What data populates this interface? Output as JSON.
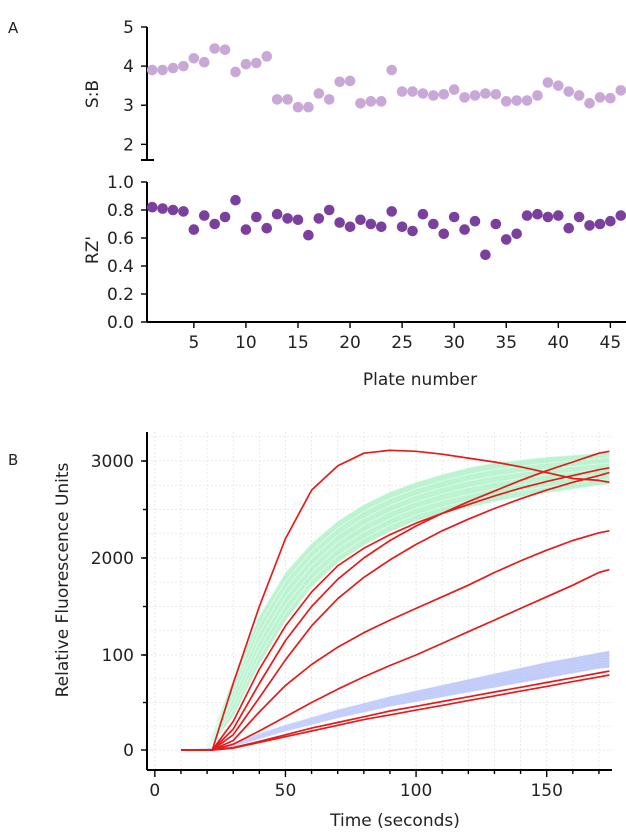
{
  "panels": {
    "a": {
      "letter": "A",
      "top_ylabel": "S:B",
      "bottom_ylabel": "RZ'",
      "xlabel": "Plate number",
      "top_yticks": [
        "2",
        "3",
        "4",
        "5"
      ],
      "bottom_yticks": [
        "0.0",
        "0.2",
        "0.4",
        "0.6",
        "0.8",
        "1.0"
      ],
      "xticks": [
        "5",
        "10",
        "15",
        "20",
        "25",
        "30",
        "35",
        "40",
        "45"
      ]
    },
    "b": {
      "letter": "B",
      "ylabel": "Relative Fluorescence Units",
      "xlabel": "Time (seconds)",
      "yticks": [
        "0",
        "100",
        "2000",
        "3000"
      ],
      "xticks": [
        "0",
        "50",
        "100",
        "150"
      ]
    }
  },
  "chart_data": [
    {
      "type": "scatter",
      "panel": "A-top",
      "ylabel": "S:B",
      "xlabel": "Plate number",
      "ylim": [
        1.6,
        5
      ],
      "xlim": [
        0.5,
        46.5
      ],
      "color": "#c9a8d8",
      "series": [
        {
          "x": [
            1,
            2,
            3,
            4,
            5,
            6,
            7,
            8,
            9,
            10,
            11,
            12,
            13,
            14,
            15,
            16,
            17,
            18,
            19,
            20,
            21,
            22,
            23,
            24,
            25,
            26,
            27,
            28,
            29,
            30,
            31,
            32,
            33,
            34,
            35,
            36,
            37,
            38,
            39,
            40,
            41,
            42,
            43,
            44,
            45,
            46
          ],
          "values": [
            3.9,
            3.9,
            3.95,
            4.0,
            4.2,
            4.1,
            4.45,
            4.42,
            3.85,
            4.05,
            4.08,
            4.25,
            3.15,
            3.15,
            2.95,
            2.95,
            3.3,
            3.15,
            3.6,
            3.62,
            3.05,
            3.1,
            3.1,
            3.9,
            3.35,
            3.35,
            3.3,
            3.25,
            3.28,
            3.4,
            3.2,
            3.25,
            3.3,
            3.28,
            3.1,
            3.12,
            3.12,
            3.25,
            3.58,
            3.5,
            3.35,
            3.25,
            3.05,
            3.2,
            3.18,
            3.38
          ]
        }
      ]
    },
    {
      "type": "scatter",
      "panel": "A-bottom",
      "ylabel": "RZ'",
      "xlabel": "Plate number",
      "ylim": [
        0,
        1.0
      ],
      "xlim": [
        0.5,
        46.5
      ],
      "color": "#7b3f9e",
      "series": [
        {
          "x": [
            1,
            2,
            3,
            4,
            5,
            6,
            7,
            8,
            9,
            10,
            11,
            12,
            13,
            14,
            15,
            16,
            17,
            18,
            19,
            20,
            21,
            22,
            23,
            24,
            25,
            26,
            27,
            28,
            29,
            30,
            31,
            32,
            33,
            34,
            35,
            36,
            37,
            38,
            39,
            40,
            41,
            42,
            43,
            44,
            45,
            46
          ],
          "values": [
            0.82,
            0.81,
            0.8,
            0.79,
            0.66,
            0.76,
            0.7,
            0.75,
            0.87,
            0.66,
            0.75,
            0.67,
            0.77,
            0.74,
            0.73,
            0.62,
            0.74,
            0.8,
            0.71,
            0.68,
            0.73,
            0.7,
            0.68,
            0.79,
            0.68,
            0.65,
            0.77,
            0.7,
            0.63,
            0.75,
            0.66,
            0.72,
            0.48,
            0.7,
            0.59,
            0.63,
            0.76,
            0.77,
            0.75,
            0.76,
            0.67,
            0.75,
            0.69,
            0.7,
            0.72,
            0.76
          ]
        }
      ]
    },
    {
      "type": "line",
      "panel": "B",
      "ylabel": "Relative Fluorescence Units",
      "xlabel": "Time (seconds)",
      "xlim": [
        -3,
        175
      ],
      "tick_scale": [
        [
          0,
          0
        ],
        [
          100,
          1000
        ],
        [
          2000,
          2000
        ],
        [
          3000,
          3000
        ]
      ],
      "grid": true,
      "groups": [
        {
          "color": "#e61a1a",
          "x": [
            10,
            22,
            30,
            40,
            50,
            60,
            70,
            80,
            90,
            100,
            110,
            120,
            130,
            140,
            150,
            160,
            170,
            174
          ],
          "lines": [
            [
              0,
              0,
              700,
              1500,
              2200,
              2700,
              2950,
              3080,
              3110,
              3100,
              3070,
              3030,
              2990,
              2940,
              2880,
              2820,
              2800,
              2780
            ],
            [
              0,
              0,
              300,
              850,
              1300,
              1650,
              1920,
              2100,
              2240,
              2360,
              2460,
              2550,
              2640,
              2720,
              2790,
              2850,
              2910,
              2930
            ],
            [
              0,
              0,
              220,
              700,
              1150,
              1500,
              1780,
              2000,
              2180,
              2330,
              2460,
              2580,
              2690,
              2800,
              2900,
              2990,
              3080,
              3100
            ],
            [
              0,
              0,
              160,
              550,
              950,
              1300,
              1580,
              1800,
              1980,
              2140,
              2280,
              2400,
              2510,
              2610,
              2700,
              2780,
              2850,
              2880
            ],
            [
              0,
              0,
              100,
              400,
              680,
              900,
              1080,
              1230,
              1360,
              1480,
              1600,
              1720,
              1850,
              1970,
              2080,
              2180,
              2260,
              2280
            ],
            [
              0,
              0,
              60,
              200,
              350,
              500,
              640,
              770,
              890,
              1000,
              1120,
              1240,
              1360,
              1480,
              1600,
              1720,
              1850,
              1880
            ],
            [
              0,
              0,
              25,
              90,
              160,
              230,
              290,
              350,
              410,
              460,
              510,
              560,
              610,
              660,
              710,
              760,
              810,
              830
            ],
            [
              0,
              0,
              20,
              80,
              140,
              200,
              260,
              320,
              370,
              420,
              470,
              520,
              570,
              620,
              670,
              720,
              770,
              790
            ]
          ]
        },
        {
          "color": "#a6efc2",
          "x": [
            10,
            20,
            30,
            40,
            50,
            60,
            70,
            80,
            90,
            100,
            110,
            120,
            130,
            140,
            150,
            160,
            170,
            174
          ],
          "band_low": [
            0,
            0,
            350,
            900,
            1350,
            1700,
            1950,
            2130,
            2270,
            2380,
            2460,
            2520,
            2580,
            2630,
            2670,
            2710,
            2750,
            2760
          ],
          "band_high": [
            0,
            20,
            750,
            1400,
            1850,
            2150,
            2380,
            2550,
            2680,
            2780,
            2860,
            2930,
            2980,
            3010,
            3040,
            3060,
            3080,
            3090
          ]
        },
        {
          "color": "#aab8f5",
          "x": [
            10,
            20,
            30,
            40,
            50,
            60,
            70,
            80,
            90,
            100,
            110,
            120,
            130,
            140,
            150,
            160,
            170,
            174
          ],
          "band_low": [
            0,
            0,
            40,
            120,
            200,
            270,
            340,
            400,
            460,
            510,
            560,
            610,
            660,
            710,
            760,
            810,
            860,
            870
          ],
          "band_high": [
            0,
            10,
            70,
            170,
            260,
            340,
            420,
            490,
            560,
            620,
            680,
            740,
            800,
            860,
            920,
            970,
            1020,
            1040
          ]
        }
      ]
    }
  ]
}
